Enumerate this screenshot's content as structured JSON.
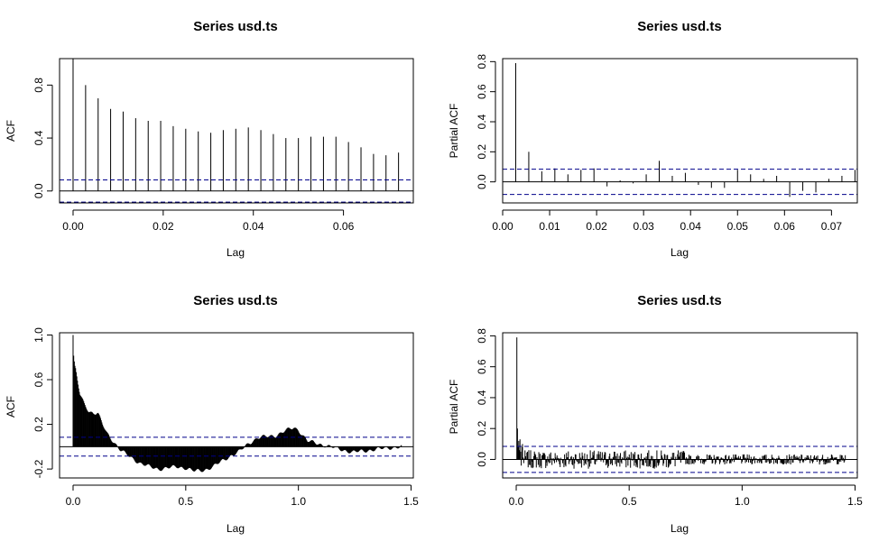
{
  "chart_data": [
    {
      "type": "bar",
      "title": "Series  usd.ts",
      "xlabel": "Lag",
      "ylabel": "ACF",
      "xlim": [
        -0.003,
        0.0755
      ],
      "ylim": [
        -0.09,
        1.0
      ],
      "xticks": [
        0.0,
        0.02,
        0.04,
        0.06
      ],
      "xtick_labels": [
        "0.00",
        "0.02",
        "0.04",
        "0.06"
      ],
      "yticks": [
        0.0,
        0.4,
        0.8
      ],
      "ytick_labels": [
        "0.0",
        "0.4",
        "0.8"
      ],
      "ytick_rotated": true,
      "conf_level": 0.084,
      "x": [
        0.0,
        0.00278,
        0.00556,
        0.00833,
        0.01111,
        0.01389,
        0.01667,
        0.01944,
        0.02222,
        0.025,
        0.02778,
        0.03056,
        0.03333,
        0.03611,
        0.03889,
        0.04167,
        0.04444,
        0.04722,
        0.05,
        0.05278,
        0.05556,
        0.05833,
        0.06111,
        0.06389,
        0.06667,
        0.06944,
        0.07222
      ],
      "values": [
        1.0,
        0.8,
        0.7,
        0.62,
        0.6,
        0.55,
        0.53,
        0.53,
        0.49,
        0.47,
        0.45,
        0.44,
        0.46,
        0.47,
        0.48,
        0.46,
        0.43,
        0.4,
        0.4,
        0.41,
        0.41,
        0.41,
        0.37,
        0.33,
        0.28,
        0.27,
        0.29
      ]
    },
    {
      "type": "bar",
      "title": "Series  usd.ts",
      "xlabel": "Lag",
      "ylabel": "Partial ACF",
      "xlim": [
        0.0,
        0.0755
      ],
      "ylim": [
        -0.14,
        0.82
      ],
      "xticks": [
        0.0,
        0.01,
        0.02,
        0.03,
        0.04,
        0.05,
        0.06,
        0.07
      ],
      "xtick_labels": [
        "0.00",
        "0.01",
        "0.02",
        "0.03",
        "0.04",
        "0.05",
        "0.06",
        "0.07"
      ],
      "yticks": [
        0.0,
        0.2,
        0.4,
        0.6,
        0.8
      ],
      "ytick_labels": [
        "0.0",
        "0.2",
        "0.4",
        "0.6",
        "0.8"
      ],
      "ytick_rotated": true,
      "conf_level": 0.084,
      "x": [
        0.00278,
        0.00556,
        0.00833,
        0.01111,
        0.01389,
        0.01667,
        0.01944,
        0.02222,
        0.025,
        0.02778,
        0.03056,
        0.03333,
        0.03611,
        0.03889,
        0.04167,
        0.04444,
        0.04722,
        0.05,
        0.05278,
        0.05556,
        0.05833,
        0.06111,
        0.06389,
        0.06667,
        0.06944,
        0.07222,
        0.075
      ],
      "values": [
        0.79,
        0.2,
        0.07,
        0.09,
        0.05,
        0.08,
        0.09,
        -0.03,
        0.01,
        -0.01,
        0.05,
        0.14,
        0.04,
        0.06,
        -0.02,
        -0.04,
        -0.04,
        0.08,
        0.05,
        0.02,
        0.04,
        -0.1,
        -0.06,
        -0.07,
        0.02,
        0.04,
        0.08
      ]
    },
    {
      "type": "bar",
      "title": "Series  usd.ts",
      "xlabel": "Lag",
      "ylabel": "ACF",
      "xlim": [
        -0.06,
        1.51
      ],
      "ylim": [
        -0.28,
        1.02
      ],
      "xticks": [
        0.0,
        0.5,
        1.0,
        1.5
      ],
      "xtick_labels": [
        "0.0",
        "0.5",
        "1.0",
        "1.5"
      ],
      "yticks": [
        -0.2,
        0.2,
        0.6,
        1.0
      ],
      "ytick_labels": [
        "-0.2",
        "0.2",
        "0.6",
        "1.0"
      ],
      "ytick_rotated": true,
      "conf_level": 0.084,
      "lag_step": 0.00278,
      "lag_max": 1.4583,
      "acf_profile": {
        "x": [
          0.0,
          0.003,
          0.01,
          0.02,
          0.03,
          0.05,
          0.07,
          0.09,
          0.11,
          0.13,
          0.15,
          0.17,
          0.19,
          0.21,
          0.23,
          0.26,
          0.3,
          0.34,
          0.38,
          0.42,
          0.46,
          0.5,
          0.54,
          0.58,
          0.62,
          0.66,
          0.7,
          0.74,
          0.78,
          0.82,
          0.86,
          0.9,
          0.94,
          0.98,
          1.0,
          1.04,
          1.08,
          1.12,
          1.16,
          1.2,
          1.24,
          1.28,
          1.32,
          1.36,
          1.4,
          1.44,
          1.4583
        ],
        "values": [
          1.0,
          0.8,
          0.7,
          0.58,
          0.47,
          0.38,
          0.32,
          0.3,
          0.3,
          0.2,
          0.12,
          0.07,
          0.02,
          -0.03,
          -0.06,
          -0.1,
          -0.15,
          -0.18,
          -0.2,
          -0.19,
          -0.18,
          -0.19,
          -0.22,
          -0.21,
          -0.18,
          -0.13,
          -0.08,
          -0.04,
          0.03,
          0.08,
          0.09,
          0.1,
          0.14,
          0.17,
          0.15,
          0.05,
          0.03,
          0.01,
          -0.01,
          -0.03,
          -0.05,
          -0.04,
          -0.03,
          -0.02,
          -0.01,
          -0.005,
          0.0
        ]
      }
    },
    {
      "type": "bar",
      "title": "Series  usd.ts",
      "xlabel": "Lag",
      "ylabel": "Partial ACF",
      "xlim": [
        -0.06,
        1.51
      ],
      "ylim": [
        -0.12,
        0.82
      ],
      "xticks": [
        0.0,
        0.5,
        1.0,
        1.5
      ],
      "xtick_labels": [
        "0.0",
        "0.5",
        "1.0",
        "1.5"
      ],
      "yticks": [
        0.0,
        0.2,
        0.4,
        0.6,
        0.8
      ],
      "ytick_labels": [
        "0.0",
        "0.2",
        "0.4",
        "0.6",
        "0.8"
      ],
      "ytick_rotated": true,
      "conf_level": 0.084,
      "lag_step": 0.00278,
      "lag_max": 1.4583,
      "leading_values": [
        0.79,
        0.2,
        0.08,
        0.12,
        0.06,
        0.13,
        0.05,
        -0.04,
        0.08,
        0.1
      ],
      "noise_amplitude": 0.06
    }
  ]
}
